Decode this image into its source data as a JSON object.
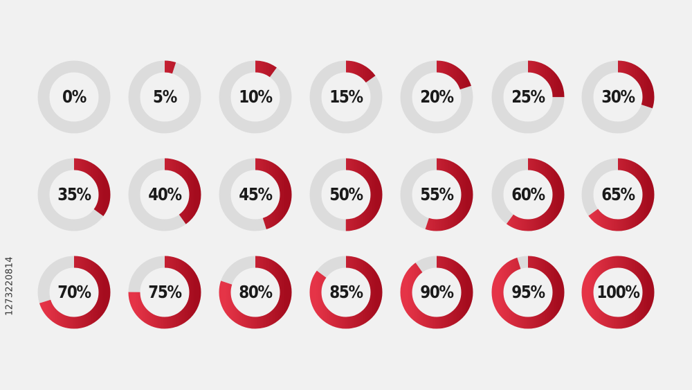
{
  "colors": {
    "background": "#f1f1f1",
    "track": "#dcdcdc",
    "progress_light": "#e53447",
    "progress_dark": "#a50c1e",
    "label": "#1a1a1a"
  },
  "donuts": [
    {
      "label": "0%",
      "value": 0
    },
    {
      "label": "5%",
      "value": 5
    },
    {
      "label": "10%",
      "value": 10
    },
    {
      "label": "15%",
      "value": 15
    },
    {
      "label": "20%",
      "value": 20
    },
    {
      "label": "25%",
      "value": 25
    },
    {
      "label": "30%",
      "value": 30
    },
    {
      "label": "35%",
      "value": 35
    },
    {
      "label": "40%",
      "value": 40
    },
    {
      "label": "45%",
      "value": 45
    },
    {
      "label": "50%",
      "value": 50
    },
    {
      "label": "55%",
      "value": 55
    },
    {
      "label": "60%",
      "value": 60
    },
    {
      "label": "65%",
      "value": 65
    },
    {
      "label": "70%",
      "value": 70
    },
    {
      "label": "75%",
      "value": 75
    },
    {
      "label": "80%",
      "value": 80
    },
    {
      "label": "85%",
      "value": 85
    },
    {
      "label": "90%",
      "value": 90
    },
    {
      "label": "95%",
      "value": 95
    },
    {
      "label": "100%",
      "value": 100
    }
  ],
  "stock_id": "1273220814"
}
